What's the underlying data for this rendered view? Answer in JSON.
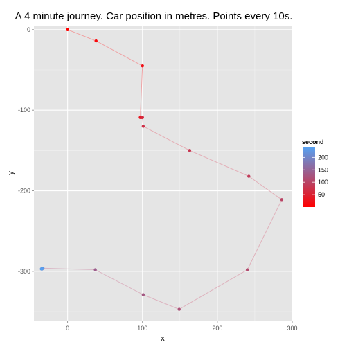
{
  "chart_data": {
    "type": "scatter",
    "title": "A 4 minute journey. Car position in metres. Points every 10s.",
    "xlabel": "x",
    "ylabel": "y",
    "xlim": [
      -45,
      300
    ],
    "ylim": [
      -362,
      5
    ],
    "x_ticks": [
      0,
      100,
      200,
      300
    ],
    "y_ticks": [
      0,
      -100,
      -200,
      -300
    ],
    "x_tick_labels": [
      "0",
      "100",
      "200",
      "300"
    ],
    "y_tick_labels": [
      "0",
      "-100",
      "-200",
      "-300"
    ],
    "grid": true,
    "legend": {
      "title": "second",
      "placement": "right",
      "range": [
        0,
        240
      ],
      "ticks": [
        50,
        100,
        150,
        200
      ],
      "tick_labels": [
        "50",
        "100",
        "150",
        "200"
      ],
      "color_low": "#ff0000",
      "color_high": "#56a0f0"
    },
    "colors": {
      "panel_background": "#e5e5e5",
      "grid_major": "#ffffff",
      "grid_minor": "#f2f2f2",
      "path_low": "#f2a0a0",
      "path_high": "#c9c6dd"
    },
    "points": [
      {
        "second": 0,
        "x": 0,
        "y": 0
      },
      {
        "second": 10,
        "x": 38,
        "y": -14
      },
      {
        "second": 20,
        "x": 100,
        "y": -45
      },
      {
        "second": 30,
        "x": 97,
        "y": -109
      },
      {
        "second": 40,
        "x": 98,
        "y": -109
      },
      {
        "second": 50,
        "x": 99,
        "y": -109
      },
      {
        "second": 60,
        "x": 100,
        "y": -109
      },
      {
        "second": 70,
        "x": 101,
        "y": -120
      },
      {
        "second": 80,
        "x": 163,
        "y": -150
      },
      {
        "second": 90,
        "x": 242,
        "y": -182
      },
      {
        "second": 100,
        "x": 286,
        "y": -211
      },
      {
        "second": 110,
        "x": 240,
        "y": -298
      },
      {
        "second": 120,
        "x": 149,
        "y": -347
      },
      {
        "second": 130,
        "x": 101,
        "y": -329
      },
      {
        "second": 140,
        "x": 37,
        "y": -298
      },
      {
        "second": 150,
        "x": -34,
        "y": -296
      },
      {
        "second": 160,
        "x": -33,
        "y": -296
      },
      {
        "second": 170,
        "x": -34,
        "y": -297
      },
      {
        "second": 180,
        "x": -35,
        "y": -297
      },
      {
        "second": 190,
        "x": -34,
        "y": -296
      },
      {
        "second": 200,
        "x": -33,
        "y": -296
      },
      {
        "second": 210,
        "x": -35,
        "y": -297
      },
      {
        "second": 220,
        "x": -34,
        "y": -297
      },
      {
        "second": 230,
        "x": -33,
        "y": -296
      },
      {
        "second": 240,
        "x": -35,
        "y": -297
      }
    ]
  }
}
